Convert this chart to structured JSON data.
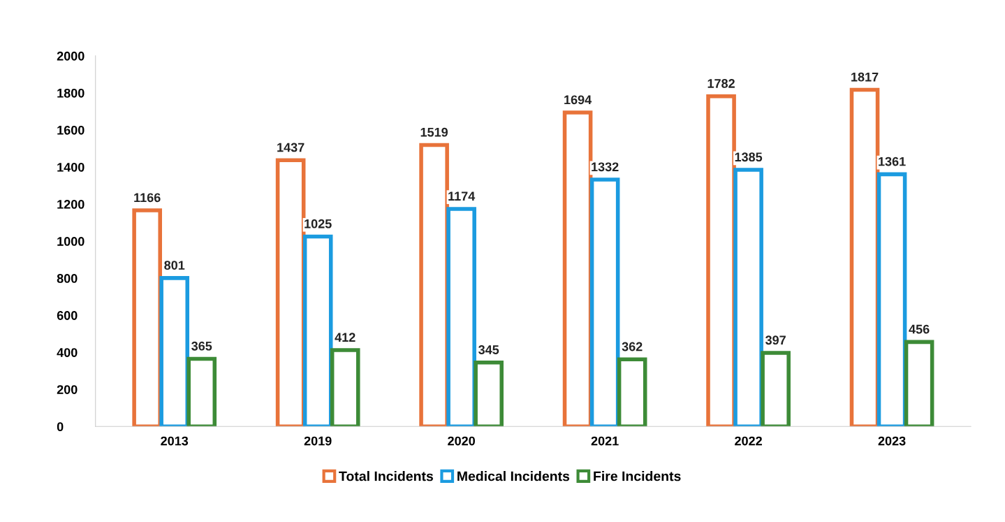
{
  "chart_data": {
    "type": "bar",
    "categories": [
      "2013",
      "2019",
      "2020",
      "2021",
      "2022",
      "2023"
    ],
    "series": [
      {
        "name": "Total Incidents",
        "color": "#e8733a",
        "values": [
          1166,
          1437,
          1519,
          1694,
          1782,
          1817
        ]
      },
      {
        "name": "Medical Incidents",
        "color": "#1b9be0",
        "values": [
          801,
          1025,
          1174,
          1332,
          1385,
          1361
        ]
      },
      {
        "name": "Fire Incidents",
        "color": "#3d8b37",
        "values": [
          365,
          412,
          345,
          362,
          397,
          456
        ]
      }
    ],
    "ylim": [
      0,
      2000
    ],
    "yticks": [
      0,
      200,
      400,
      600,
      800,
      1000,
      1200,
      1400,
      1600,
      1800,
      2000
    ],
    "data_labels": true,
    "legend": "bottom"
  }
}
